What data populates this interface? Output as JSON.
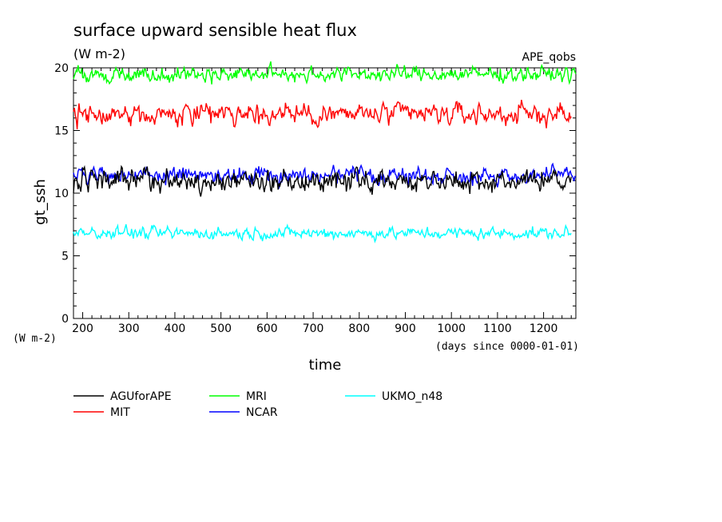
{
  "chart_data": {
    "type": "line",
    "title": "surface upward sensible heat flux",
    "units": "(W m-2)",
    "experiment": "APE_qobs",
    "ylabel": "gt_ssh",
    "xlabel": "time",
    "yunits_label": "(W m-2)",
    "xunits_label": "(days since 0000-01-01)",
    "xlim": [
      180,
      1270
    ],
    "ylim": [
      0,
      21
    ],
    "x_ticks": [
      200,
      300,
      400,
      500,
      600,
      700,
      800,
      900,
      1000,
      1100,
      1200
    ],
    "y_ticks": [
      0,
      5,
      10,
      15,
      20
    ],
    "grid": false,
    "legend_position": "below",
    "series": [
      {
        "name": "AGUforAPE",
        "color": "#000000",
        "x_start": 180,
        "x_end": 1260,
        "mean": 11.0,
        "amplitude": 1.3,
        "min": 8.5,
        "max": 13.9
      },
      {
        "name": "MIT",
        "color": "#ff0000",
        "x_start": 180,
        "x_end": 1260,
        "mean": 16.3,
        "amplitude": 1.3,
        "min": 14.1,
        "max": 18.6
      },
      {
        "name": "MRI",
        "color": "#00ff00",
        "x_start": 180,
        "x_end": 1270,
        "mean": 19.5,
        "amplitude": 0.9,
        "min": 17.5,
        "max": 21.7
      },
      {
        "name": "NCAR",
        "color": "#0000ff",
        "x_start": 180,
        "x_end": 1270,
        "mean": 11.4,
        "amplitude": 1.0,
        "min": 9.0,
        "max": 14.0
      },
      {
        "name": "UKMO_n48",
        "color": "#00ffff",
        "x_start": 180,
        "x_end": 1260,
        "mean": 6.8,
        "amplitude": 0.7,
        "min": 5.1,
        "max": 9.1
      }
    ]
  }
}
